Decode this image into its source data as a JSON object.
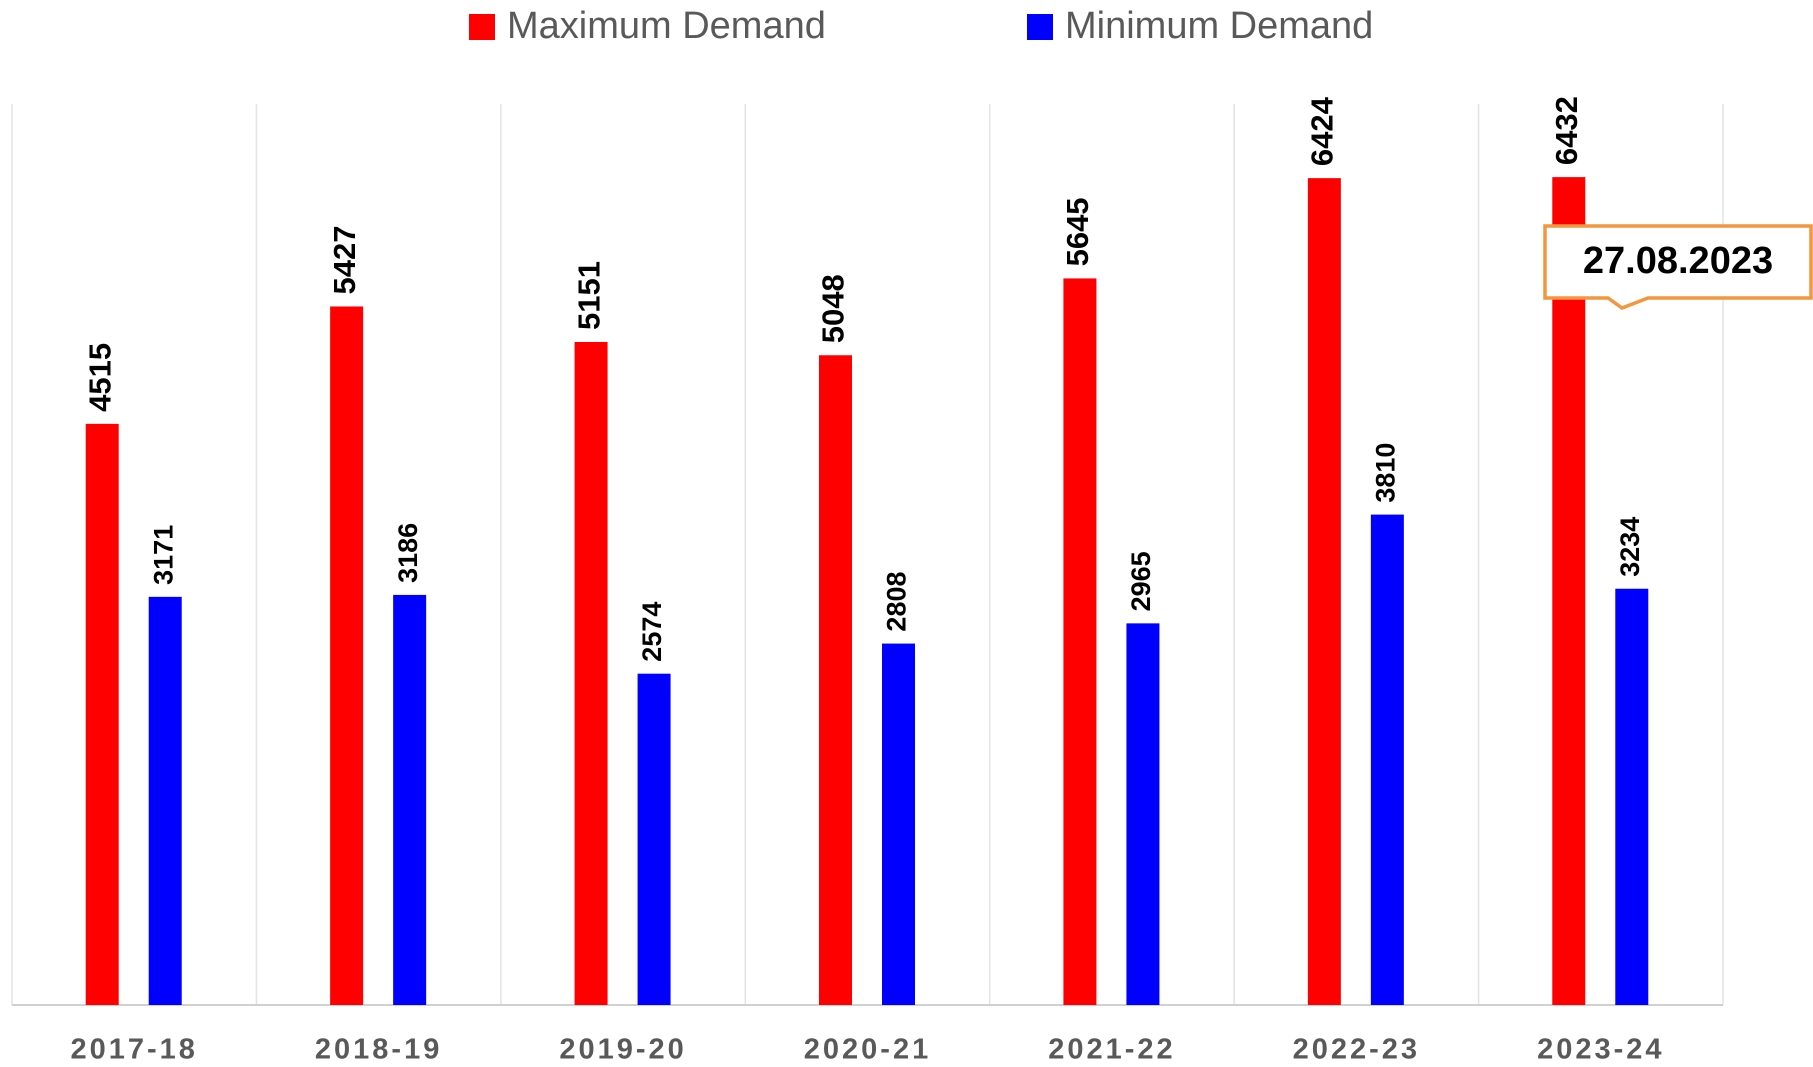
{
  "chart_data": {
    "type": "bar",
    "categories": [
      "2017-18",
      "2018-19",
      "2019-20",
      "2020-21",
      "2021-22",
      "2022-23",
      "2023-24"
    ],
    "series": [
      {
        "name": "Maximum Demand",
        "color": "#ff0000",
        "values": [
          4515,
          5427,
          5151,
          5048,
          5645,
          6424,
          6432
        ]
      },
      {
        "name": "Minimum Demand",
        "color": "#0000ff",
        "values": [
          3171,
          3186,
          2574,
          2808,
          2965,
          3810,
          3234
        ]
      }
    ],
    "ylim": [
      0,
      7000
    ],
    "annotation": "27.08.2023",
    "grid": true,
    "legend": "top"
  }
}
